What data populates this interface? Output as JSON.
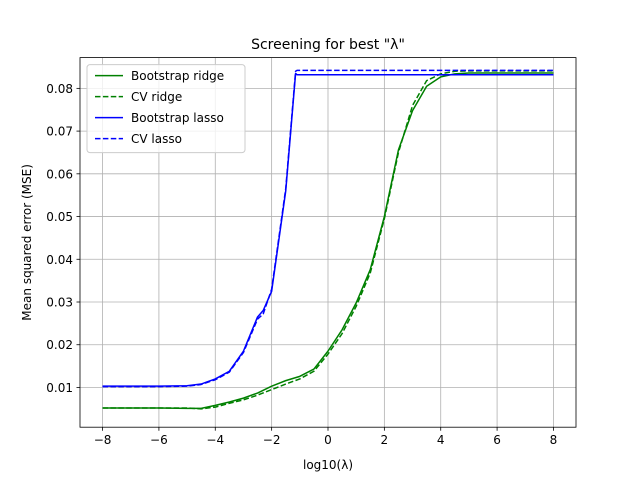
{
  "chart_data": {
    "type": "line",
    "title": "Screening for best \"λ\"",
    "xlabel": "log10(λ)",
    "ylabel": "Mean squared error (MSE)",
    "xlim": [
      -8.8,
      8.8
    ],
    "ylim": [
      0.0007,
      0.0872
    ],
    "xticks": [
      -8,
      -6,
      -4,
      -2,
      0,
      2,
      4,
      6,
      8
    ],
    "xtick_labels": [
      "−8",
      "−6",
      "−4",
      "−2",
      "0",
      "2",
      "4",
      "6",
      "8"
    ],
    "yticks": [
      0.01,
      0.02,
      0.03,
      0.04,
      0.05,
      0.06,
      0.07,
      0.08
    ],
    "ytick_labels": [
      "0.01",
      "0.02",
      "0.03",
      "0.04",
      "0.05",
      "0.06",
      "0.07",
      "0.08"
    ],
    "grid": true,
    "legend_position": "upper-left",
    "series": [
      {
        "name": "Bootstrap ridge",
        "color": "#008000",
        "dash": "solid",
        "x": [
          -8,
          -6,
          -5,
          -4.5,
          -4,
          -3.5,
          -3,
          -2.5,
          -2,
          -1.5,
          -1,
          -0.5,
          0,
          0.5,
          1,
          1.5,
          2,
          2.5,
          3,
          3.5,
          4,
          4.5,
          5,
          6,
          8
        ],
        "y": [
          0.0052,
          0.0052,
          0.0051,
          0.0051,
          0.0058,
          0.0066,
          0.0075,
          0.0087,
          0.0103,
          0.0116,
          0.0126,
          0.0143,
          0.0185,
          0.0235,
          0.0298,
          0.0376,
          0.05,
          0.0656,
          0.0748,
          0.0805,
          0.0827,
          0.0834,
          0.0836,
          0.0836,
          0.0836
        ]
      },
      {
        "name": "CV ridge",
        "color": "#008000",
        "dash": "dashed",
        "x": [
          -8,
          -6,
          -5,
          -4.5,
          -4,
          -3.5,
          -3,
          -2.5,
          -2,
          -1.5,
          -1,
          -0.5,
          0,
          0.5,
          1,
          1.5,
          2,
          2.5,
          3,
          3.5,
          4,
          4.5,
          5,
          6,
          8
        ],
        "y": [
          0.0052,
          0.0052,
          0.0052,
          0.005,
          0.0054,
          0.0063,
          0.0071,
          0.0082,
          0.0095,
          0.0108,
          0.012,
          0.0138,
          0.0178,
          0.0226,
          0.029,
          0.0368,
          0.0495,
          0.065,
          0.076,
          0.0818,
          0.0834,
          0.084,
          0.0841,
          0.0841,
          0.0841
        ]
      },
      {
        "name": "Bootstrap lasso",
        "color": "#0000ff",
        "dash": "solid",
        "x": [
          -8,
          -6,
          -5,
          -4.5,
          -4,
          -3.5,
          -3,
          -2.5,
          -2.3,
          -2,
          -1.5,
          -1.15,
          -1.1,
          0,
          8
        ],
        "y": [
          0.0103,
          0.0103,
          0.0104,
          0.0108,
          0.012,
          0.0138,
          0.0185,
          0.0265,
          0.028,
          0.0325,
          0.056,
          0.0835,
          0.0832,
          0.0832,
          0.0832
        ]
      },
      {
        "name": "CV lasso",
        "color": "#0000ff",
        "dash": "dashed",
        "x": [
          -8,
          -6,
          -5,
          -4.5,
          -4,
          -3.5,
          -3,
          -2.5,
          -2.3,
          -2,
          -1.5,
          -1.15,
          -1.1,
          0,
          8
        ],
        "y": [
          0.0102,
          0.0102,
          0.0103,
          0.0107,
          0.0118,
          0.0136,
          0.0182,
          0.026,
          0.0272,
          0.033,
          0.0565,
          0.084,
          0.0842,
          0.0842,
          0.0842
        ]
      }
    ]
  }
}
